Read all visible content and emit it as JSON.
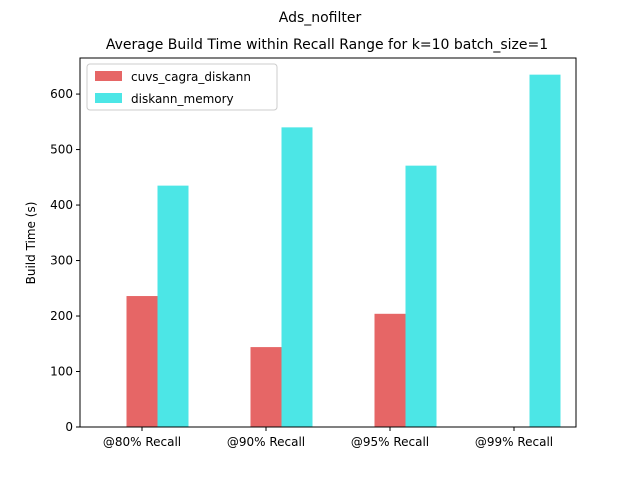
{
  "chart_data": {
    "type": "bar",
    "suptitle": "Ads_nofilter",
    "title": "Average Build Time within Recall Range for k=10 batch_size=1",
    "xlabel": "",
    "ylabel": "Build Time (s)",
    "categories": [
      "@80% Recall",
      "@90% Recall",
      "@95% Recall",
      "@99% Recall"
    ],
    "series": [
      {
        "name": "cuvs_cagra_diskann",
        "color": "#e66666",
        "values": [
          236,
          144,
          204,
          null
        ]
      },
      {
        "name": "diskann_memory",
        "color": "#4ce6e6",
        "values": [
          435,
          540,
          471,
          635
        ]
      }
    ],
    "ylim": [
      0,
      665
    ],
    "yticks": [
      0,
      100,
      200,
      300,
      400,
      500,
      600
    ],
    "legend_position": "top-left",
    "grid": false
  }
}
